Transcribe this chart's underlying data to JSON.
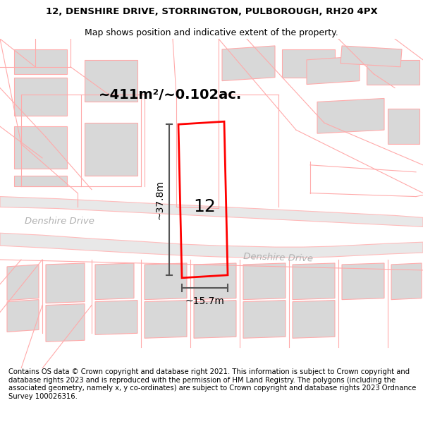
{
  "title_line1": "12, DENSHIRE DRIVE, STORRINGTON, PULBOROUGH, RH20 4PX",
  "title_line2": "Map shows position and indicative extent of the property.",
  "footer_text": "Contains OS data © Crown copyright and database right 2021. This information is subject to Crown copyright and database rights 2023 and is reproduced with the permission of HM Land Registry. The polygons (including the associated geometry, namely x, y co-ordinates) are subject to Crown copyright and database rights 2023 Ordnance Survey 100026316.",
  "area_label": "~411m²/~0.102ac.",
  "height_label": "~37.8m",
  "width_label": "~15.7m",
  "house_number": "12",
  "road_name_1": "Denshire Drive",
  "road_name_2": "Denshire Drive",
  "map_bg": "#ffffff",
  "road_fill": "#e8e8e8",
  "building_fill": "#d8d8d8",
  "border_color": "#ff0000",
  "plot_line_color": "#ffaaaa",
  "road_edge_color": "#ffbbbb",
  "title_fontsize": 9.5,
  "subtitle_fontsize": 9.0,
  "footer_fontsize": 7.2
}
